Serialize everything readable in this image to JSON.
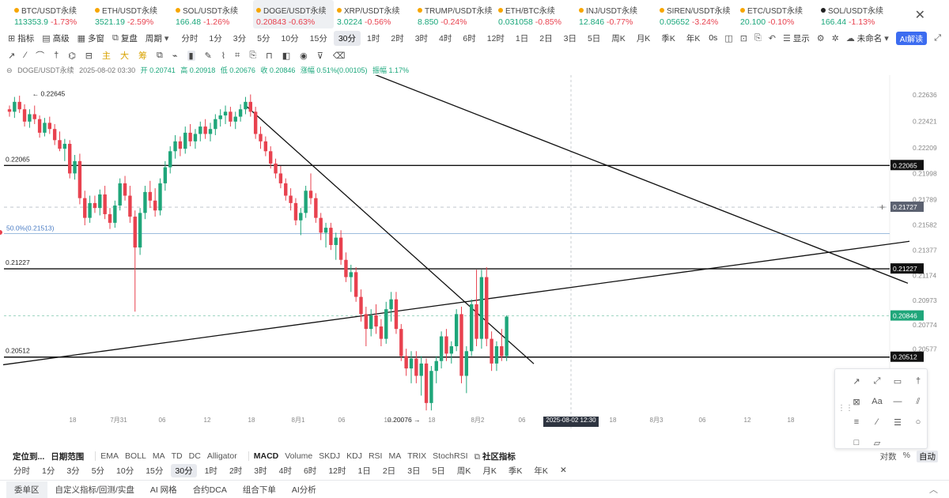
{
  "tickers": [
    {
      "name": "BTC/USDT永续",
      "price": "113353.9",
      "change": "-1.73%",
      "dir": "down",
      "color": "#f7a600"
    },
    {
      "name": "ETH/USDT永续",
      "price": "3521.19",
      "change": "-2.59%",
      "dir": "down",
      "color": "#f7a600"
    },
    {
      "name": "SOL/USDT永续",
      "price": "166.48",
      "change": "-1.26%",
      "dir": "down",
      "color": "#f7a600"
    },
    {
      "name": "DOGE/USDT永续",
      "price": "0.20843",
      "change": "-0.63%",
      "dir": "down",
      "color": "#f7a600"
    },
    {
      "name": "XRP/USDT永续",
      "price": "3.0224",
      "change": "-0.56%",
      "dir": "down",
      "color": "#f7a600"
    },
    {
      "name": "TRUMP/USDT永续",
      "price": "8.850",
      "change": "-0.24%",
      "dir": "down",
      "color": "#f7a600"
    },
    {
      "name": "ETH/BTC永续",
      "price": "0.031058",
      "change": "-0.85%",
      "dir": "down",
      "color": "#f7a600"
    },
    {
      "name": "INJ/USDT永续",
      "price": "12.846",
      "change": "-0.77%",
      "dir": "down",
      "color": "#f7a600"
    },
    {
      "name": "SIREN/USDT永续",
      "price": "0.05652",
      "change": "-3.24%",
      "dir": "down",
      "color": "#f7a600"
    },
    {
      "name": "ETC/USDT永续",
      "price": "20.100",
      "change": "-0.10%",
      "dir": "down",
      "color": "#f7a600"
    },
    {
      "name": "SOL/USDT永续",
      "price": "166.44",
      "change": "-1.13%",
      "dir": "down",
      "color": "#222222"
    }
  ],
  "toolbar": {
    "items": [
      "指标",
      "高级",
      "多窗",
      "复盘",
      "周期"
    ],
    "timeframes": [
      "分时",
      "1分",
      "3分",
      "5分",
      "10分",
      "15分",
      "30分",
      "1时",
      "2时",
      "3时",
      "4时",
      "6时",
      "12时",
      "1日",
      "2日",
      "3日",
      "5日",
      "周K",
      "月K",
      "季K",
      "年K"
    ],
    "selected_timeframe": "30分",
    "right": {
      "timer": "0s",
      "display": "显示",
      "account": "未命名",
      "ai": "AI解读"
    }
  },
  "drawtools": {
    "labels": [
      "主",
      "大",
      "筹"
    ]
  },
  "info": {
    "symbol": "DOGE/USDT永续",
    "time": "2025-08-02 03:30",
    "open": "开 0.20741",
    "high": "高 0.20918",
    "low": "低 0.20676",
    "close": "收 0.20846",
    "change": "涨幅 0.51%(0.00105)",
    "amplitude": "振幅 1.17%"
  },
  "chart_data": {
    "type": "candlestick",
    "symbol": "DOGE/USDT永续",
    "interval": "30分",
    "ylim": [
      0.2003,
      0.2272
    ],
    "price_ticks": [
      "0.22636",
      "0.22421",
      "0.22209",
      "0.21998",
      "0.21789",
      "0.21582",
      "0.21377",
      "0.21174",
      "0.20973",
      "0.20774",
      "0.20577"
    ],
    "x_ticks": [
      "18",
      "7月31",
      "06",
      "12",
      "18",
      "8月1",
      "06",
      "12",
      "18",
      "8月2",
      "06",
      "2025-08-02 12:30",
      "18",
      "8月3",
      "06",
      "12",
      "18"
    ],
    "horizontal_lines": [
      {
        "label": "0.22065",
        "value": 0.22065
      },
      {
        "label": "0.21227",
        "value": 0.21227
      },
      {
        "label": "0.20512",
        "value": 0.20512
      }
    ],
    "fib_line": {
      "label": "50.0%(0.21513)",
      "value": 0.21513
    },
    "dashed_price_line": {
      "value": 0.21727,
      "label": "0.21727"
    },
    "current_price": {
      "value": 0.20846,
      "label": "0.20846"
    },
    "high_label": "0.22645",
    "low_label": "0.20076",
    "crosshair_time": "2025-08-02 12:30",
    "candles": [
      [
        0.2252,
        0.2255,
        0.2246,
        0.225
      ],
      [
        0.225,
        0.2262,
        0.2245,
        0.2258
      ],
      [
        0.2258,
        0.2263,
        0.2249,
        0.2252
      ],
      [
        0.2252,
        0.2256,
        0.2238,
        0.2242
      ],
      [
        0.2242,
        0.2252,
        0.2237,
        0.2248
      ],
      [
        0.2248,
        0.2255,
        0.224,
        0.2244
      ],
      [
        0.2244,
        0.2247,
        0.2229,
        0.2233
      ],
      [
        0.2233,
        0.2245,
        0.223,
        0.2241
      ],
      [
        0.2241,
        0.2246,
        0.2232,
        0.2236
      ],
      [
        0.2236,
        0.224,
        0.2223,
        0.2227
      ],
      [
        0.2227,
        0.2234,
        0.2218,
        0.222
      ],
      [
        0.222,
        0.2228,
        0.221,
        0.2224
      ],
      [
        0.2224,
        0.2227,
        0.2196,
        0.22
      ],
      [
        0.22,
        0.2215,
        0.2195,
        0.221
      ],
      [
        0.221,
        0.2216,
        0.2175,
        0.218
      ],
      [
        0.218,
        0.2186,
        0.2158,
        0.2164
      ],
      [
        0.2164,
        0.2182,
        0.216,
        0.2176
      ],
      [
        0.2176,
        0.2182,
        0.2168,
        0.2172
      ],
      [
        0.2172,
        0.2187,
        0.2166,
        0.2183
      ],
      [
        0.2183,
        0.219,
        0.2163,
        0.2167
      ],
      [
        0.2167,
        0.2172,
        0.2155,
        0.216
      ],
      [
        0.216,
        0.2178,
        0.2156,
        0.2174
      ],
      [
        0.2174,
        0.2196,
        0.217,
        0.2192
      ],
      [
        0.2192,
        0.2198,
        0.2178,
        0.2182
      ],
      [
        0.2182,
        0.219,
        0.216,
        0.2165
      ],
      [
        0.2165,
        0.217,
        0.2088,
        0.214
      ],
      [
        0.214,
        0.2172,
        0.2134,
        0.2168
      ],
      [
        0.2168,
        0.219,
        0.2163,
        0.2185
      ],
      [
        0.2185,
        0.2194,
        0.2172,
        0.2178
      ],
      [
        0.2178,
        0.2188,
        0.2165,
        0.217
      ],
      [
        0.217,
        0.2196,
        0.2166,
        0.2192
      ],
      [
        0.2192,
        0.221,
        0.2186,
        0.2205
      ],
      [
        0.2205,
        0.2222,
        0.22,
        0.2218
      ],
      [
        0.2218,
        0.2231,
        0.2212,
        0.2226
      ],
      [
        0.2226,
        0.223,
        0.2214,
        0.222
      ],
      [
        0.222,
        0.2238,
        0.2216,
        0.2233
      ],
      [
        0.2233,
        0.224,
        0.2222,
        0.2226
      ],
      [
        0.2226,
        0.2236,
        0.222,
        0.2232
      ],
      [
        0.2232,
        0.2242,
        0.2226,
        0.2238
      ],
      [
        0.2238,
        0.2244,
        0.2228,
        0.2232
      ],
      [
        0.2232,
        0.2241,
        0.2226,
        0.2236
      ],
      [
        0.2236,
        0.2248,
        0.2231,
        0.2244
      ],
      [
        0.2244,
        0.2252,
        0.2238,
        0.2247
      ],
      [
        0.2247,
        0.2255,
        0.224,
        0.225
      ],
      [
        0.225,
        0.2254,
        0.2238,
        0.2242
      ],
      [
        0.2242,
        0.225,
        0.2236,
        0.2246
      ],
      [
        0.2246,
        0.2256,
        0.2242,
        0.2252
      ],
      [
        0.2252,
        0.2262,
        0.2248,
        0.2258
      ],
      [
        0.2258,
        0.2264,
        0.2246,
        0.225
      ],
      [
        0.225,
        0.2254,
        0.2228,
        0.2232
      ],
      [
        0.2232,
        0.2238,
        0.222,
        0.2226
      ],
      [
        0.2226,
        0.223,
        0.2214,
        0.2218
      ],
      [
        0.2218,
        0.2222,
        0.2204,
        0.2208
      ],
      [
        0.2208,
        0.2212,
        0.2196,
        0.22
      ],
      [
        0.22,
        0.2206,
        0.2188,
        0.2192
      ],
      [
        0.2192,
        0.2196,
        0.2178,
        0.2182
      ],
      [
        0.2182,
        0.2188,
        0.217,
        0.2176
      ],
      [
        0.2176,
        0.218,
        0.2158,
        0.2162
      ],
      [
        0.2162,
        0.2172,
        0.215,
        0.2168
      ],
      [
        0.2168,
        0.219,
        0.2164,
        0.2186
      ],
      [
        0.2186,
        0.22,
        0.2175,
        0.218
      ],
      [
        0.218,
        0.2184,
        0.216,
        0.2164
      ],
      [
        0.2164,
        0.2168,
        0.2146,
        0.2152
      ],
      [
        0.2152,
        0.216,
        0.214,
        0.2156
      ],
      [
        0.2156,
        0.216,
        0.2138,
        0.2142
      ],
      [
        0.2142,
        0.2152,
        0.213,
        0.2148
      ],
      [
        0.2148,
        0.2154,
        0.2126,
        0.213
      ],
      [
        0.213,
        0.2136,
        0.2112,
        0.2116
      ],
      [
        0.2116,
        0.2126,
        0.2104,
        0.212
      ],
      [
        0.212,
        0.2124,
        0.2096,
        0.21
      ],
      [
        0.21,
        0.2106,
        0.208,
        0.2086
      ],
      [
        0.2086,
        0.2092,
        0.206,
        0.2074
      ],
      [
        0.2074,
        0.209,
        0.2068,
        0.2085
      ],
      [
        0.2085,
        0.2094,
        0.207,
        0.2076
      ],
      [
        0.2076,
        0.2082,
        0.206,
        0.2066
      ],
      [
        0.2066,
        0.2096,
        0.2062,
        0.209
      ],
      [
        0.209,
        0.2104,
        0.208,
        0.2098
      ],
      [
        0.2098,
        0.2104,
        0.207,
        0.2074
      ],
      [
        0.2074,
        0.2078,
        0.2048,
        0.2052
      ],
      [
        0.2052,
        0.2058,
        0.2036,
        0.2042
      ],
      [
        0.2042,
        0.2056,
        0.203,
        0.205
      ],
      [
        0.205,
        0.2056,
        0.203,
        0.2036
      ],
      [
        0.2036,
        0.2052,
        0.202,
        0.2046
      ],
      [
        0.2046,
        0.205,
        0.2008,
        0.2014
      ],
      [
        0.2014,
        0.2044,
        0.2008,
        0.204
      ],
      [
        0.204,
        0.2052,
        0.203,
        0.2048
      ],
      [
        0.2048,
        0.2072,
        0.2042,
        0.2068
      ],
      [
        0.2068,
        0.2074,
        0.2048,
        0.2054
      ],
      [
        0.2054,
        0.2064,
        0.2046,
        0.206
      ],
      [
        0.206,
        0.209,
        0.2056,
        0.2086
      ],
      [
        0.2086,
        0.2092,
        0.203,
        0.2036
      ],
      [
        0.2036,
        0.206,
        0.2022,
        0.2056
      ],
      [
        0.2056,
        0.2098,
        0.2052,
        0.2094
      ],
      [
        0.2094,
        0.2122,
        0.206,
        0.2066
      ],
      [
        0.2066,
        0.2122,
        0.2058,
        0.2116
      ],
      [
        0.2116,
        0.2124,
        0.206,
        0.2066
      ],
      [
        0.2066,
        0.2072,
        0.204,
        0.2046
      ],
      [
        0.2046,
        0.2064,
        0.204,
        0.206
      ],
      [
        0.206,
        0.2074,
        0.2048,
        0.2052
      ],
      [
        0.2052,
        0.2085,
        0.2048,
        0.2084
      ]
    ]
  },
  "palette": {
    "items": [
      "↗",
      "⤢",
      "▭",
      "†",
      "⊠",
      "Aa",
      "—",
      "⫽",
      "≡",
      "⁄",
      "☰",
      "○",
      "□",
      "▱"
    ]
  },
  "indicators": {
    "left": [
      "定位到...",
      "日期范围"
    ],
    "main": [
      "EMA",
      "BOLL",
      "MA",
      "TD",
      "DC",
      "Alligator"
    ],
    "sub": [
      "MACD",
      "Volume",
      "SKDJ",
      "KDJ",
      "RSI",
      "MA",
      "TRIX",
      "StochRSI"
    ],
    "community": "社区指标",
    "right": [
      "对数",
      "%",
      "自动"
    ]
  },
  "tfrow": {
    "items": [
      "分时",
      "1分",
      "3分",
      "5分",
      "10分",
      "15分",
      "30分",
      "1时",
      "2时",
      "3时",
      "4时",
      "6时",
      "12时",
      "1日",
      "2日",
      "3日",
      "5日",
      "周K",
      "月K",
      "季K",
      "年K"
    ],
    "selected": "30分"
  },
  "bottom": {
    "tabs": [
      "委单区",
      "自定义指标/回测/实盘",
      "AI 网格",
      "合约DCA",
      "组合下单",
      "AI分析"
    ],
    "selected": "委单区"
  }
}
